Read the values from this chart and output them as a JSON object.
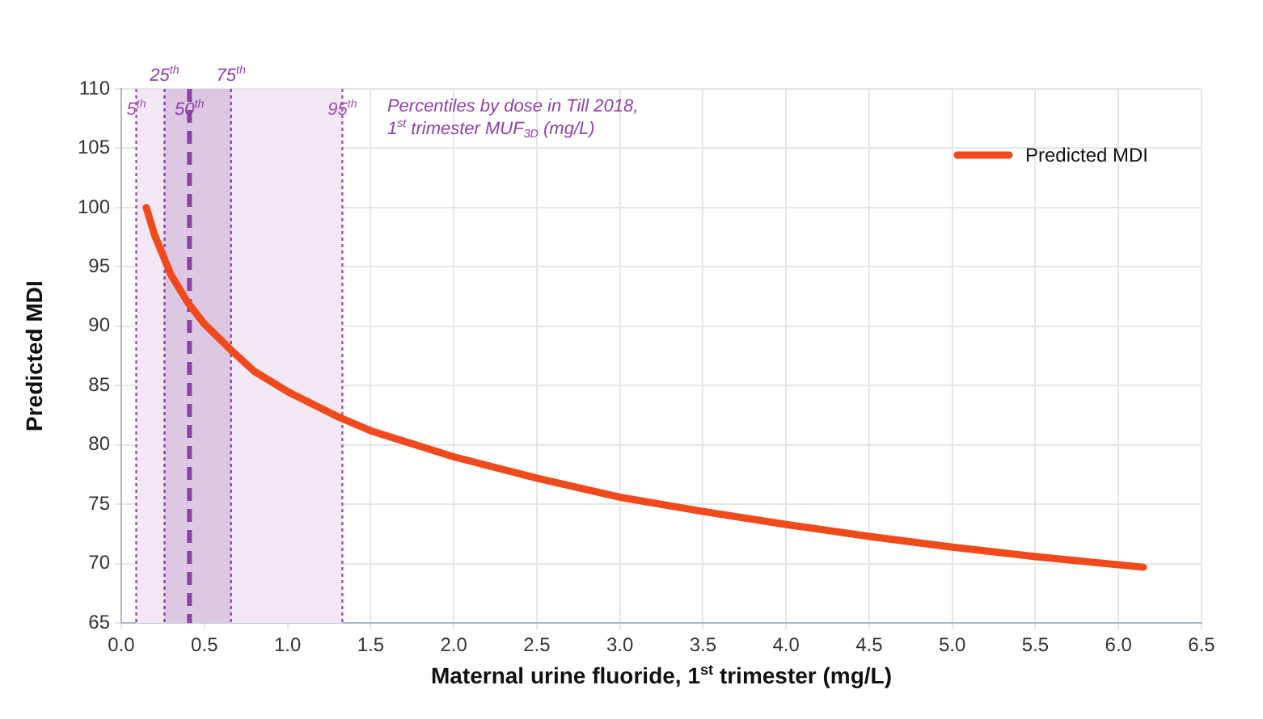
{
  "chart_data": {
    "type": "line",
    "xlabel": "Maternal urine fluoride, 1$^{st}$ trimester (mg/L)",
    "ylabel": "Predicted MDI",
    "x": [
      0.15,
      0.2,
      0.3,
      0.4,
      0.5,
      0.66,
      0.8,
      1.0,
      1.3,
      1.5,
      2.0,
      2.5,
      3.0,
      3.5,
      4.0,
      4.5,
      5.0,
      5.5,
      6.15
    ],
    "series": [
      {
        "name": "Predicted MDI",
        "color": "#f04a1c",
        "values": [
          100,
          97.7,
          94.3,
          92,
          90.2,
          88,
          86.2,
          84.5,
          82.4,
          81.2,
          79,
          77.2,
          75.6,
          74.4,
          73.3,
          72.3,
          71.4,
          70.6,
          69.7
        ]
      }
    ],
    "xlim": [
      0,
      6.5
    ],
    "xticks": [
      {
        "value": 0,
        "label": "0.0"
      },
      0.5,
      {
        "value": 1,
        "label": "1.0"
      },
      1.5,
      {
        "value": 2,
        "label": "2.0"
      },
      2.5,
      {
        "value": 3,
        "label": "3.0"
      },
      3.5,
      {
        "value": 4,
        "label": "4.0"
      },
      4.5,
      {
        "value": 5,
        "label": "5.0"
      },
      5.5,
      {
        "value": 6,
        "label": "6.0"
      },
      6.5
    ],
    "ylim": [
      65,
      110
    ],
    "yticks": [
      65,
      70,
      75,
      80,
      85,
      90,
      95,
      100,
      105,
      110
    ],
    "grid": true,
    "legend": "top right",
    "marker": "none",
    "line_style": "solid",
    "bands": [
      {
        "axis": "x",
        "from": 0.09,
        "to": 1.33,
        "color": "#f1e8f3"
      },
      {
        "axis": "x",
        "from": 0.26,
        "to": 0.66,
        "color": "#dcc8e2"
      }
    ],
    "ref_lines": [
      {
        "axis": "x",
        "value": 0.09,
        "label": "5$^{th}$",
        "color": "#a24fb0",
        "line_style": "dotted"
      },
      {
        "axis": "x",
        "value": 0.26,
        "label": "25$^{th}$",
        "color": "#8e3fa8",
        "line_style": "dotted"
      },
      {
        "axis": "x",
        "value": 0.41,
        "label": "50$^{th}$",
        "color": "#8e3fa8",
        "line_style": "dashed"
      },
      {
        "axis": "x",
        "value": 0.66,
        "label": "75$^{th}$",
        "color": "#8e3fa8",
        "line_style": "dotted"
      },
      {
        "axis": "x",
        "value": 1.33,
        "label": "95$^{th}$",
        "color": "#a24fb0",
        "line_style": "dotted"
      }
    ],
    "annotations": [
      "Percentiles by dose in Till 2018,",
      "1$^{st}$ trimester MUF$_{3D}$ (mg/L)"
    ]
  }
}
